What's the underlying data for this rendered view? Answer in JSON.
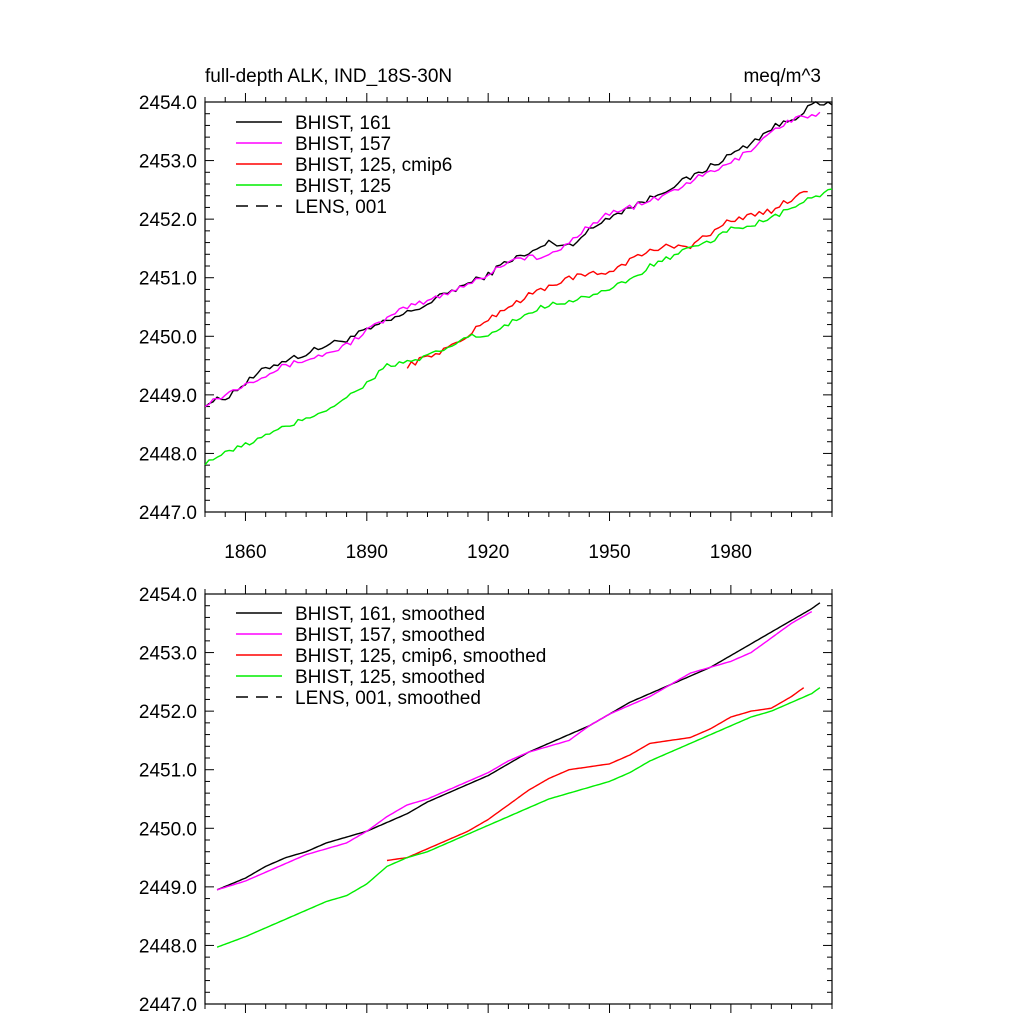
{
  "title_left": "full-depth ALK, IND_18S-30N",
  "title_right": "meq/m^3",
  "chart_data": [
    {
      "type": "line",
      "title": "full-depth ALK, IND_18S-30N",
      "units": "meq/m^3",
      "xlim": [
        1850,
        2005
      ],
      "ylim": [
        2447.0,
        2454.0
      ],
      "x_ticks": [
        1860,
        1890,
        1920,
        1950,
        1980
      ],
      "y_ticks": [
        2447.0,
        2448.0,
        2449.0,
        2450.0,
        2451.0,
        2452.0,
        2453.0,
        2454.0
      ],
      "y_tick_labels": [
        "2447.0",
        "2448.0",
        "2449.0",
        "2450.0",
        "2451.0",
        "2452.0",
        "2453.0",
        "2454.0"
      ],
      "x_tick_labels": [
        "1860",
        "1890",
        "1920",
        "1950",
        "1980"
      ],
      "legend": [
        "BHIST, 161",
        "BHIST, 157",
        "BHIST, 125, cmip6",
        "BHIST, 125",
        "LENS, 001"
      ],
      "series": [
        {
          "name": "BHIST, 161",
          "color": "#000000",
          "dash": "solid",
          "x": [
            1850,
            1855,
            1860,
            1865,
            1870,
            1875,
            1880,
            1885,
            1890,
            1895,
            1900,
            1905,
            1910,
            1915,
            1920,
            1925,
            1930,
            1935,
            1940,
            1945,
            1950,
            1955,
            1960,
            1965,
            1970,
            1975,
            1980,
            1985,
            1990,
            1995,
            2000,
            2005
          ],
          "y": [
            2448.85,
            2448.95,
            2449.2,
            2449.45,
            2449.6,
            2449.7,
            2449.85,
            2449.95,
            2450.1,
            2450.25,
            2450.4,
            2450.55,
            2450.75,
            2450.9,
            2451.05,
            2451.3,
            2451.4,
            2451.6,
            2451.55,
            2451.8,
            2452.05,
            2452.2,
            2452.35,
            2452.55,
            2452.7,
            2452.9,
            2453.1,
            2453.3,
            2453.55,
            2453.7,
            2453.95,
            2453.95
          ],
          "noise": 0.055
        },
        {
          "name": "BHIST, 157",
          "color": "#ff00ff",
          "dash": "solid",
          "x": [
            1850,
            1855,
            1860,
            1865,
            1870,
            1875,
            1880,
            1885,
            1890,
            1895,
            1900,
            1905,
            1910,
            1915,
            1920,
            1925,
            1930,
            1935,
            1940,
            1945,
            1950,
            1955,
            1960,
            1965,
            1970,
            1975,
            1980,
            1985,
            1990,
            1995,
            2002
          ],
          "y": [
            2448.85,
            2449.0,
            2449.2,
            2449.35,
            2449.5,
            2449.6,
            2449.7,
            2449.85,
            2450.1,
            2450.3,
            2450.5,
            2450.6,
            2450.75,
            2450.9,
            2451.05,
            2451.3,
            2451.35,
            2451.35,
            2451.6,
            2451.9,
            2452.1,
            2452.2,
            2452.3,
            2452.45,
            2452.65,
            2452.8,
            2452.95,
            2453.2,
            2453.5,
            2453.7,
            2453.8
          ],
          "noise": 0.05
        },
        {
          "name": "BHIST, 125, cmip6",
          "color": "#ff0000",
          "dash": "solid",
          "x": [
            1900,
            1905,
            1910,
            1915,
            1920,
            1925,
            1930,
            1935,
            1940,
            1945,
            1950,
            1955,
            1960,
            1965,
            1970,
            1975,
            1980,
            1985,
            1990,
            1995,
            1999
          ],
          "y": [
            2449.5,
            2449.65,
            2449.8,
            2450.0,
            2450.3,
            2450.5,
            2450.7,
            2450.85,
            2451.0,
            2451.05,
            2451.1,
            2451.3,
            2451.45,
            2451.55,
            2451.55,
            2451.75,
            2452.0,
            2452.05,
            2452.15,
            2452.35,
            2452.5
          ],
          "noise": 0.05
        },
        {
          "name": "BHIST, 125",
          "color": "#00ee00",
          "dash": "solid",
          "x": [
            1850,
            1855,
            1860,
            1865,
            1870,
            1875,
            1880,
            1885,
            1890,
            1895,
            1900,
            1905,
            1910,
            1915,
            1920,
            1925,
            1930,
            1935,
            1940,
            1945,
            1950,
            1955,
            1960,
            1965,
            1970,
            1975,
            1980,
            1985,
            1990,
            1995,
            2000,
            2005
          ],
          "y": [
            2447.85,
            2448.0,
            2448.15,
            2448.3,
            2448.45,
            2448.6,
            2448.75,
            2448.95,
            2449.2,
            2449.5,
            2449.55,
            2449.65,
            2449.8,
            2450.0,
            2450.0,
            2450.2,
            2450.4,
            2450.55,
            2450.6,
            2450.7,
            2450.8,
            2450.95,
            2451.2,
            2451.35,
            2451.5,
            2451.6,
            2451.85,
            2451.9,
            2452.0,
            2452.2,
            2452.35,
            2452.5
          ],
          "noise": 0.045
        },
        {
          "name": "LENS, 001",
          "color": "#000000",
          "dash": "dashed",
          "x": [],
          "y": [],
          "noise": 0
        }
      ]
    },
    {
      "type": "line",
      "title": "",
      "xlim": [
        1850,
        2005
      ],
      "ylim": [
        2447.0,
        2454.0
      ],
      "x_ticks": [
        1860,
        1890,
        1920,
        1950,
        1980
      ],
      "y_ticks": [
        2447.0,
        2448.0,
        2449.0,
        2450.0,
        2451.0,
        2452.0,
        2453.0,
        2454.0
      ],
      "y_tick_labels": [
        "2447.0",
        "2448.0",
        "2449.0",
        "2450.0",
        "2451.0",
        "2452.0",
        "2453.0",
        "2454.0"
      ],
      "legend": [
        "BHIST, 161, smoothed",
        "BHIST, 157, smoothed",
        "BHIST, 125, cmip6, smoothed",
        "BHIST, 125, smoothed",
        "LENS, 001, smoothed"
      ],
      "series": [
        {
          "name": "BHIST, 161, smoothed",
          "color": "#000000",
          "dash": "solid",
          "x": [
            1853,
            1860,
            1865,
            1870,
            1875,
            1880,
            1885,
            1890,
            1895,
            1900,
            1905,
            1910,
            1915,
            1920,
            1925,
            1930,
            1935,
            1940,
            1945,
            1950,
            1955,
            1960,
            1965,
            1970,
            1975,
            1980,
            1985,
            1990,
            1995,
            2000,
            2002
          ],
          "y": [
            2448.95,
            2449.15,
            2449.35,
            2449.5,
            2449.6,
            2449.75,
            2449.85,
            2449.95,
            2450.1,
            2450.25,
            2450.45,
            2450.6,
            2450.75,
            2450.9,
            2451.1,
            2451.3,
            2451.45,
            2451.6,
            2451.75,
            2451.95,
            2452.15,
            2452.3,
            2452.45,
            2452.6,
            2452.75,
            2452.95,
            2453.15,
            2453.35,
            2453.55,
            2453.75,
            2453.85
          ],
          "noise": 0
        },
        {
          "name": "BHIST, 157, smoothed",
          "color": "#ff00ff",
          "dash": "solid",
          "x": [
            1853,
            1860,
            1865,
            1870,
            1875,
            1880,
            1885,
            1890,
            1895,
            1900,
            1905,
            1910,
            1915,
            1920,
            1925,
            1930,
            1935,
            1940,
            1945,
            1950,
            1955,
            1960,
            1965,
            1970,
            1975,
            1980,
            1985,
            1990,
            1995,
            2000
          ],
          "y": [
            2448.95,
            2449.1,
            2449.25,
            2449.4,
            2449.55,
            2449.65,
            2449.75,
            2449.95,
            2450.2,
            2450.4,
            2450.5,
            2450.65,
            2450.8,
            2450.95,
            2451.15,
            2451.3,
            2451.4,
            2451.5,
            2451.75,
            2451.95,
            2452.1,
            2452.25,
            2452.45,
            2452.65,
            2452.75,
            2452.85,
            2453.0,
            2453.25,
            2453.5,
            2453.7
          ],
          "noise": 0
        },
        {
          "name": "BHIST, 125, cmip6, smoothed",
          "color": "#ff0000",
          "dash": "solid",
          "x": [
            1895,
            1900,
            1905,
            1910,
            1915,
            1920,
            1925,
            1930,
            1935,
            1940,
            1945,
            1950,
            1955,
            1960,
            1965,
            1970,
            1975,
            1980,
            1985,
            1990,
            1995,
            1998
          ],
          "y": [
            2449.45,
            2449.5,
            2449.65,
            2449.8,
            2449.95,
            2450.15,
            2450.4,
            2450.65,
            2450.85,
            2451.0,
            2451.05,
            2451.1,
            2451.25,
            2451.45,
            2451.5,
            2451.55,
            2451.7,
            2451.9,
            2452.0,
            2452.05,
            2452.25,
            2452.4
          ],
          "noise": 0
        },
        {
          "name": "BHIST, 125, smoothed",
          "color": "#00ee00",
          "dash": "solid",
          "x": [
            1853,
            1860,
            1865,
            1870,
            1875,
            1880,
            1885,
            1890,
            1895,
            1900,
            1905,
            1910,
            1915,
            1920,
            1925,
            1930,
            1935,
            1940,
            1945,
            1950,
            1955,
            1960,
            1965,
            1970,
            1975,
            1980,
            1985,
            1990,
            1995,
            2000,
            2002
          ],
          "y": [
            2447.97,
            2448.15,
            2448.3,
            2448.45,
            2448.6,
            2448.75,
            2448.85,
            2449.05,
            2449.35,
            2449.5,
            2449.6,
            2449.75,
            2449.9,
            2450.05,
            2450.2,
            2450.35,
            2450.5,
            2450.6,
            2450.7,
            2450.8,
            2450.95,
            2451.15,
            2451.3,
            2451.45,
            2451.6,
            2451.75,
            2451.9,
            2452.0,
            2452.15,
            2452.3,
            2452.4
          ],
          "noise": 0
        },
        {
          "name": "LENS, 001, smoothed",
          "color": "#000000",
          "dash": "dashed",
          "x": [],
          "y": [],
          "noise": 0
        }
      ]
    }
  ]
}
